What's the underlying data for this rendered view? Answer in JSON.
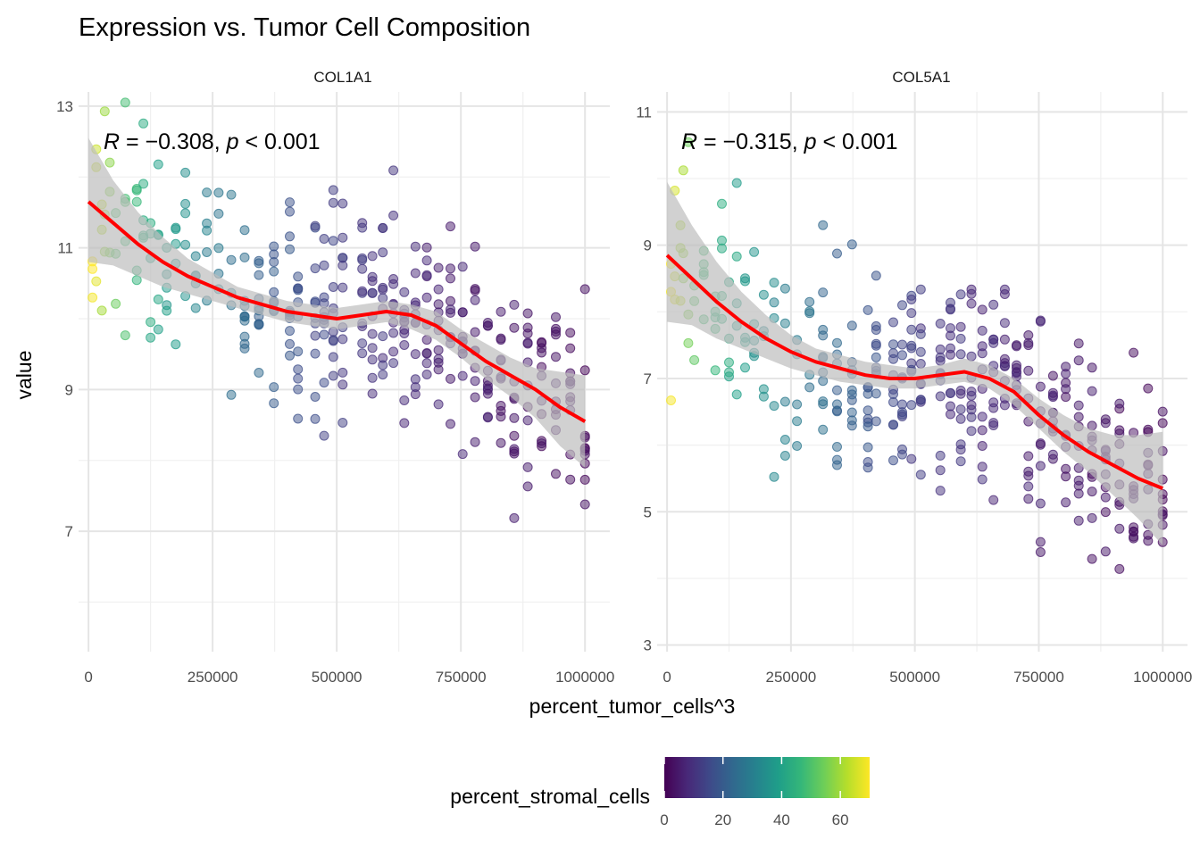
{
  "chart_data": {
    "type": "scatter",
    "title": "Expression vs. Tumor Cell Composition",
    "xlabel": "percent_tumor_cells^3",
    "ylabel": "value",
    "xticks": [
      "0",
      "250000",
      "500000",
      "750000",
      "1000000"
    ],
    "xtick_values": [
      0,
      250000,
      500000,
      750000,
      1000000
    ],
    "xlim": [
      -20000,
      1050000
    ],
    "grid": true,
    "legend": {
      "title": "percent_stromal_cells",
      "position": "bottom",
      "ticks": [
        "0",
        "20",
        "40",
        "60"
      ],
      "tick_values": [
        0,
        20,
        40,
        60
      ],
      "range": [
        0,
        70
      ],
      "colormap": "viridis"
    },
    "smooth_line_color": "#ff0000",
    "ribbon_color": "#bdbdbd",
    "panels": [
      {
        "strip": "COL1A1",
        "annotation": {
          "r": "−0.308",
          "p": "< 0.001"
        },
        "ylim": [
          5.3,
          13.2
        ],
        "yticks": [
          "7",
          "9",
          "11",
          "13"
        ],
        "ytick_values": [
          7,
          9,
          11,
          13
        ],
        "smooth": {
          "x": [
            0,
            50000,
            100000,
            150000,
            200000,
            250000,
            300000,
            350000,
            400000,
            450000,
            500000,
            550000,
            600000,
            650000,
            700000,
            750000,
            800000,
            850000,
            900000,
            950000,
            1000000
          ],
          "y": [
            11.65,
            11.35,
            11.05,
            10.8,
            10.6,
            10.45,
            10.3,
            10.2,
            10.1,
            10.05,
            10.0,
            10.05,
            10.1,
            10.05,
            9.9,
            9.65,
            9.4,
            9.2,
            9.0,
            8.75,
            8.55
          ],
          "lower": [
            10.8,
            10.75,
            10.6,
            10.45,
            10.35,
            10.25,
            10.15,
            10.05,
            9.95,
            9.9,
            9.85,
            9.9,
            9.95,
            9.85,
            9.7,
            9.45,
            9.15,
            8.9,
            8.6,
            8.2,
            7.9
          ],
          "upper": [
            12.55,
            11.95,
            11.5,
            11.15,
            10.85,
            10.65,
            10.45,
            10.35,
            10.25,
            10.2,
            10.15,
            10.2,
            10.25,
            10.2,
            10.1,
            9.85,
            9.65,
            9.45,
            9.3,
            9.25,
            9.2
          ]
        }
      },
      {
        "strip": "COL5A1",
        "annotation": {
          "r": "−0.315",
          "p": "< 0.001"
        },
        "ylim": [
          2.9,
          11.3
        ],
        "yticks": [
          "3",
          "5",
          "7",
          "9",
          "11"
        ],
        "ytick_values": [
          3,
          5,
          7,
          9,
          11
        ],
        "smooth": {
          "x": [
            0,
            50000,
            100000,
            150000,
            200000,
            250000,
            300000,
            350000,
            400000,
            450000,
            500000,
            550000,
            600000,
            650000,
            700000,
            750000,
            800000,
            850000,
            900000,
            950000,
            1000000
          ],
          "y": [
            8.85,
            8.5,
            8.15,
            7.85,
            7.6,
            7.4,
            7.25,
            7.15,
            7.05,
            7.0,
            7.0,
            7.05,
            7.1,
            7.0,
            6.8,
            6.45,
            6.15,
            5.9,
            5.7,
            5.5,
            5.35
          ],
          "lower": [
            7.85,
            7.8,
            7.6,
            7.45,
            7.3,
            7.15,
            7.05,
            6.95,
            6.9,
            6.85,
            6.85,
            6.9,
            6.95,
            6.85,
            6.6,
            6.25,
            5.9,
            5.6,
            5.25,
            4.9,
            4.5
          ],
          "upper": [
            9.95,
            9.3,
            8.75,
            8.3,
            7.95,
            7.65,
            7.45,
            7.35,
            7.25,
            7.2,
            7.15,
            7.2,
            7.3,
            7.2,
            7.0,
            6.7,
            6.45,
            6.25,
            6.15,
            6.15,
            6.2
          ]
        }
      }
    ],
    "points": {
      "x_levels": [
        8000,
        15625,
        27000,
        32768,
        42875,
        54872,
        74088,
        97336,
        110592,
        125000,
        140608,
        157464,
        175616,
        195112,
        216000,
        238328,
        262144,
        287496,
        314432,
        343000,
        373248,
        405224,
        421875,
        456533,
        474552,
        493039,
        512000,
        551368,
        571787,
        592704,
        614125,
        636056,
        658503,
        681472,
        704969,
        729000,
        753571,
        778688,
        804357,
        830584,
        857375,
        884736,
        912673,
        941192,
        970299,
        1000000
      ],
      "stroma_levels": [
        70,
        66,
        62,
        60,
        56,
        52,
        48,
        46,
        44,
        42,
        40,
        38,
        36,
        34,
        32,
        30,
        28,
        26,
        24,
        22,
        20,
        18,
        17,
        15,
        14,
        13,
        12,
        11,
        10,
        10,
        9,
        8,
        8,
        7,
        7,
        6,
        6,
        5,
        5,
        5,
        4,
        4,
        3,
        3,
        3,
        2
      ],
      "point_alpha": 0.5
    }
  }
}
